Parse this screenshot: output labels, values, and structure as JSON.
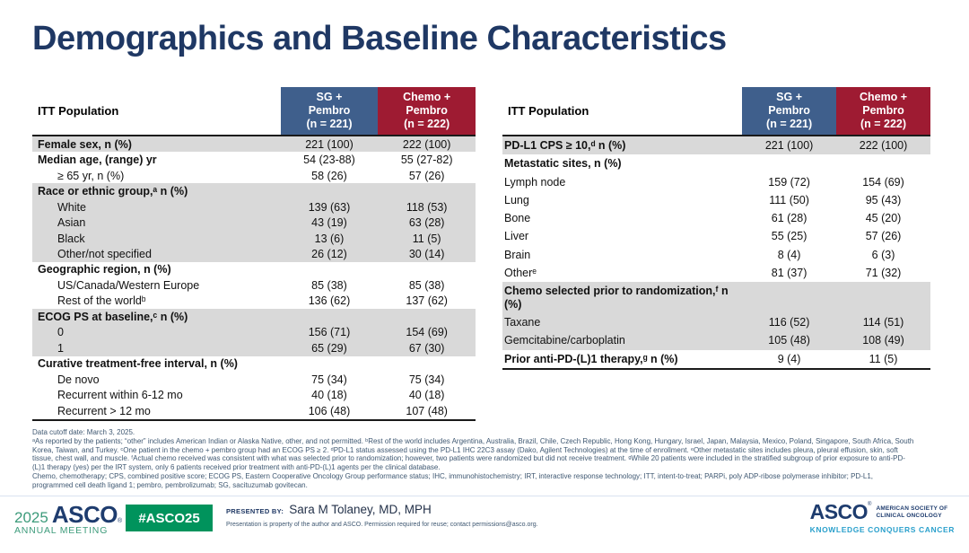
{
  "colors": {
    "title-navy": "#1F3864",
    "header-blue": "#3F5F8C",
    "header-red": "#9E1B32",
    "band-gray": "#D9D9D9",
    "footnote-blue": "#3F5872",
    "divider": "#D9E2F0",
    "asco-green": "#3D9B7B",
    "badge-green": "#00935C",
    "asco-navy": "#1E3C6E",
    "motto-teal": "#2AA0CC"
  },
  "slide": {
    "title": "Demographics and Baseline Characteristics"
  },
  "tables": [
    {
      "name": "demographics",
      "header": {
        "label": "ITT Population",
        "col1": "SG +\nPembro\n(n = 221)",
        "col2": "Chemo +\nPembro\n(n = 222)"
      },
      "rows": [
        {
          "label": "Female sex, n (%)",
          "bold": true,
          "indent": false,
          "shaded": true,
          "values": [
            "221 (100)",
            "222 (100)"
          ]
        },
        {
          "label": "Median age, (range) yr",
          "bold": true,
          "indent": false,
          "shaded": false,
          "values": [
            "54 (23-88)",
            "55 (27-82)"
          ]
        },
        {
          "label": "≥ 65 yr, n (%)",
          "bold": false,
          "indent": true,
          "shaded": false,
          "values": [
            "58 (26)",
            "57 (26)"
          ]
        },
        {
          "label": "Race or ethnic group,ᵃ n (%)",
          "bold": true,
          "indent": false,
          "shaded": true,
          "values": [
            "",
            ""
          ]
        },
        {
          "label": "White",
          "bold": false,
          "indent": true,
          "shaded": true,
          "values": [
            "139 (63)",
            "118 (53)"
          ]
        },
        {
          "label": "Asian",
          "bold": false,
          "indent": true,
          "shaded": true,
          "values": [
            "43 (19)",
            "63 (28)"
          ]
        },
        {
          "label": "Black",
          "bold": false,
          "indent": true,
          "shaded": true,
          "values": [
            "13 (6)",
            "11 (5)"
          ]
        },
        {
          "label": "Other/not specified",
          "bold": false,
          "indent": true,
          "shaded": true,
          "values": [
            "26 (12)",
            "30 (14)"
          ]
        },
        {
          "label": "Geographic region, n (%)",
          "bold": true,
          "indent": false,
          "shaded": false,
          "values": [
            "",
            ""
          ]
        },
        {
          "label": "US/Canada/Western Europe",
          "bold": false,
          "indent": true,
          "shaded": false,
          "values": [
            "85 (38)",
            "85 (38)"
          ]
        },
        {
          "label": "Rest of the worldᵇ",
          "bold": false,
          "indent": true,
          "shaded": false,
          "values": [
            "136 (62)",
            "137 (62)"
          ]
        },
        {
          "label": "ECOG PS at baseline,ᶜ n (%)",
          "bold": true,
          "indent": false,
          "shaded": true,
          "values": [
            "",
            ""
          ]
        },
        {
          "label": "0",
          "bold": false,
          "indent": true,
          "shaded": true,
          "values": [
            "156 (71)",
            "154 (69)"
          ]
        },
        {
          "label": "1",
          "bold": false,
          "indent": true,
          "shaded": true,
          "values": [
            "65 (29)",
            "67 (30)"
          ]
        },
        {
          "label": "Curative treatment-free interval, n (%)",
          "bold": true,
          "indent": false,
          "shaded": false,
          "values": [
            "",
            ""
          ]
        },
        {
          "label": "De novo",
          "bold": false,
          "indent": true,
          "shaded": false,
          "values": [
            "75 (34)",
            "75 (34)"
          ]
        },
        {
          "label": "Recurrent within 6-12 mo",
          "bold": false,
          "indent": true,
          "shaded": false,
          "values": [
            "40 (18)",
            "40 (18)"
          ]
        },
        {
          "label": "Recurrent > 12 mo",
          "bold": false,
          "indent": true,
          "shaded": false,
          "values": [
            "106 (48)",
            "107 (48)"
          ]
        }
      ]
    },
    {
      "name": "disease-characteristics",
      "header": {
        "label": "ITT Population",
        "col1": "SG +\nPembro\n(n = 221)",
        "col2": "Chemo +\nPembro\n(n = 222)"
      },
      "rows": [
        {
          "label": "PD-L1 CPS ≥ 10,ᵈ n (%)",
          "bold": true,
          "indent": false,
          "shaded": true,
          "values": [
            "221 (100)",
            "222 (100)"
          ]
        },
        {
          "label": "Metastatic sites, n (%)",
          "bold": true,
          "indent": false,
          "shaded": false,
          "values": [
            "",
            ""
          ]
        },
        {
          "label": "Lymph node",
          "bold": false,
          "indent": true,
          "shaded": false,
          "values": [
            "159 (72)",
            "154 (69)"
          ]
        },
        {
          "label": "Lung",
          "bold": false,
          "indent": true,
          "shaded": false,
          "values": [
            "111 (50)",
            "95 (43)"
          ]
        },
        {
          "label": "Bone",
          "bold": false,
          "indent": true,
          "shaded": false,
          "values": [
            "61 (28)",
            "45 (20)"
          ]
        },
        {
          "label": "Liver",
          "bold": false,
          "indent": true,
          "shaded": false,
          "values": [
            "55 (25)",
            "57 (26)"
          ]
        },
        {
          "label": "Brain",
          "bold": false,
          "indent": true,
          "shaded": false,
          "values": [
            "8 (4)",
            "6 (3)"
          ]
        },
        {
          "label": "Otherᵉ",
          "bold": false,
          "indent": true,
          "shaded": false,
          "values": [
            "81 (37)",
            "71 (32)"
          ]
        },
        {
          "label": "Chemo selected prior to randomization,ᶠ n (%)",
          "bold": true,
          "indent": false,
          "shaded": true,
          "values": [
            "",
            ""
          ]
        },
        {
          "label": "Taxane",
          "bold": false,
          "indent": true,
          "shaded": true,
          "values": [
            "116 (52)",
            "114 (51)"
          ]
        },
        {
          "label": "Gemcitabine/carboplatin",
          "bold": false,
          "indent": true,
          "shaded": true,
          "values": [
            "105 (48)",
            "108 (49)"
          ]
        },
        {
          "label": "Prior anti-PD-(L)1 therapy,ᵍ n (%)",
          "bold": true,
          "indent": false,
          "shaded": false,
          "values": [
            "9 (4)",
            "11 (5)"
          ]
        }
      ]
    }
  ],
  "footnotes": {
    "lines": [
      "Data cutoff date: March 3, 2025.",
      "ᵃAs reported by the patients; “other” includes American Indian or Alaska Native, other, and not permitted. ᵇRest of the world includes Argentina, Australia, Brazil, Chile, Czech Republic, Hong Kong, Hungary, Israel, Japan, Malaysia, Mexico, Poland, Singapore, South Africa, South",
      "Korea, Taiwan, and Turkey. ᶜOne patient in the chemo + pembro group had an ECOG PS ≥ 2. ᵈPD-L1 status assessed using the PD-L1 IHC 22C3 assay (Dako, Agilent Technologies) at the time of enrollment. ᵉOther metastatic sites includes pleura, pleural effusion, skin, soft",
      "tissue, chest wall, and muscle. ᶠActual chemo received was consistent with what was selected prior to randomization; however, two patients were randomized but did not receive treatment. ᵍWhile 20 patients were included in the stratified subgroup of prior exposure to anti-PD-",
      "(L)1 therapy (yes) per the IRT system, only 6 patients received prior treatment with anti-PD-(L)1 agents per the clinical database.",
      "Chemo, chemotherapy; CPS, combined positive score; ECOG PS, Eastern Cooperative Oncology Group performance status; IHC, immunohistochemistry; IRT, interactive response technology; ITT, intent-to-treat; PARPi, poly ADP-ribose polymerase inhibitor; PD-L1,",
      "programmed cell death ligand 1; pembro, pembrolizumab; SG, sacituzumab govitecan."
    ]
  },
  "footer": {
    "logo_year": "2025",
    "logo_asco": "ASCO",
    "logo_mark": "®",
    "logo_meeting": "ANNUAL MEETING",
    "hashtag": "#ASCO25",
    "presented_by_label": "PRESENTED BY:",
    "presenter": "Sara M Tolaney, MD, MPH",
    "permission": "Presentation is property of the author and ASCO. Permission required for reuse; contact permissions@asco.org.",
    "asco_right": "ASCO",
    "asco_right_mark": "®",
    "society_line1": "AMERICAN SOCIETY OF",
    "society_line2": "CLINICAL ONCOLOGY",
    "motto": "KNOWLEDGE CONQUERS CANCER"
  }
}
